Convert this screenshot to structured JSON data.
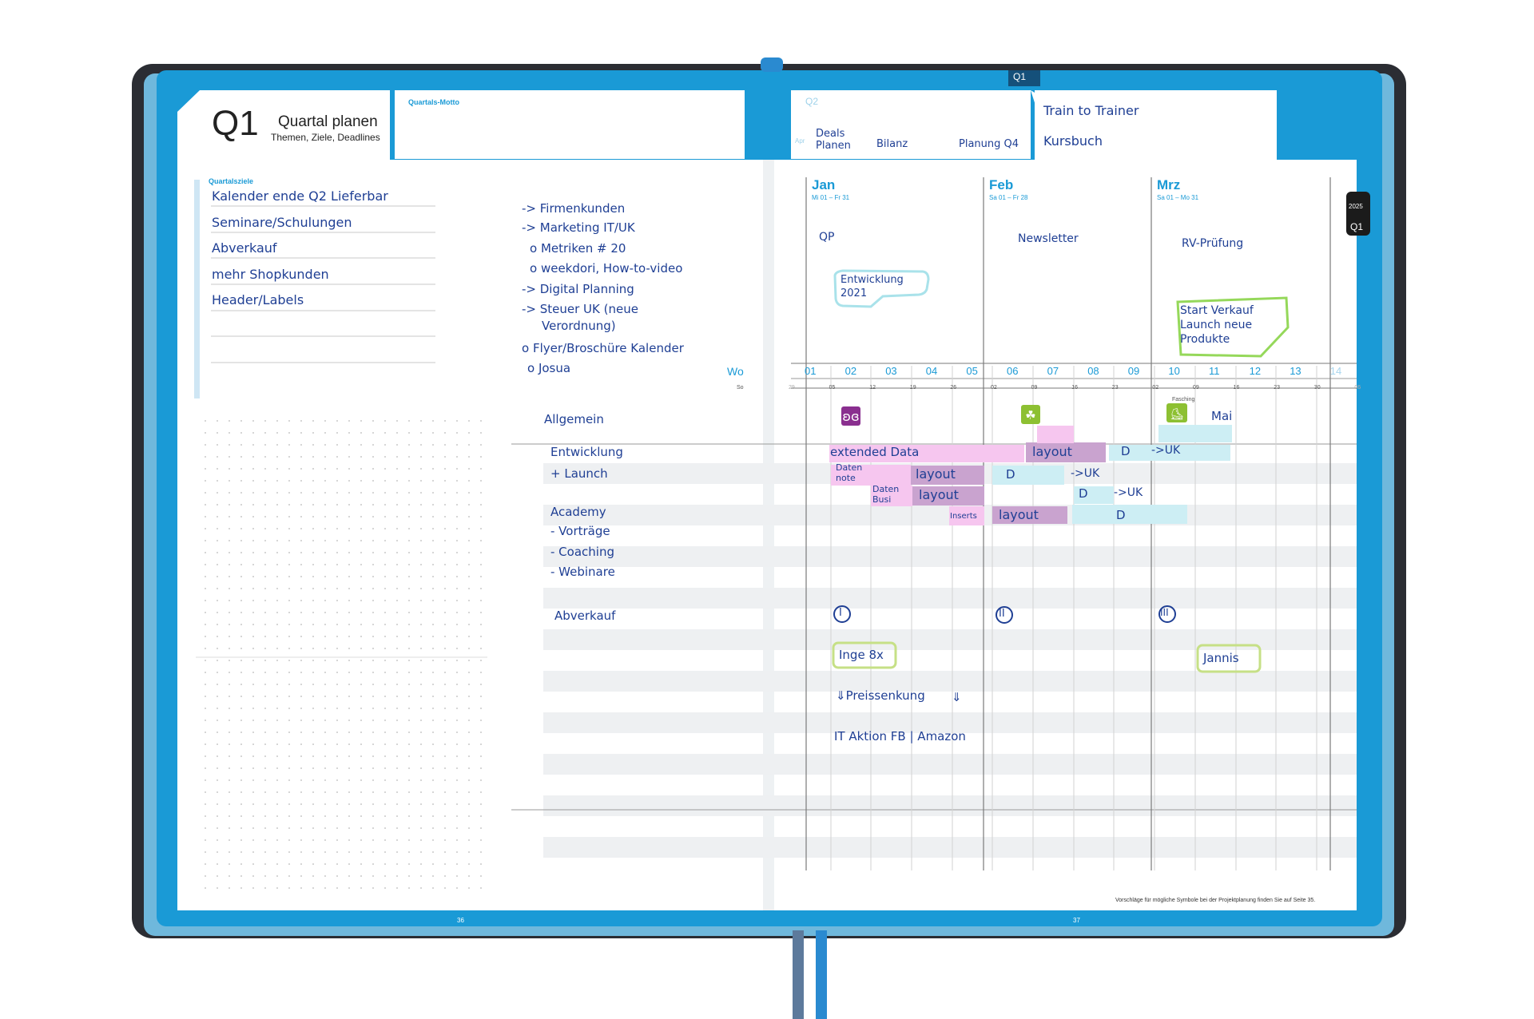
{
  "left_page": {
    "quarter": "Q1",
    "title": "Quartal planen",
    "subtitle": "Themen, Ziele, Deadlines",
    "motto_label": "Quartals-Motto",
    "goals_label": "Quartalsziele",
    "goals": [
      "Kalender ende Q2 Lieferbar",
      "Seminare/Schulungen",
      "Abverkauf",
      "mehr Shopkunden",
      "Header/Labels"
    ],
    "notes": [
      "-> Firmenkunden",
      "-> Marketing IT/UK",
      "o Metriken # 20",
      "o weekdori, How-to-video",
      "-> Digital Planning",
      "-> Steuer UK (neue",
      "Verordnung)",
      "o Flyer/Broschüre Kalender",
      "o Josua"
    ],
    "page_number": "36",
    "week_label": "Wo",
    "week_sub": "So"
  },
  "right_page": {
    "q1_tab": "Q1",
    "q2_label": "Q2",
    "apr_label": "Apr",
    "q2_notes": [
      "Deals",
      "Planen",
      "Bilanz",
      "Planung Q4"
    ],
    "train": "Train to Trainer",
    "kursbuch": "Kursbuch",
    "year": "2025",
    "side_q": "Q1",
    "months": [
      {
        "name": "Jan",
        "range": "Mi 01 – Fr 31",
        "note": "QP"
      },
      {
        "name": "Feb",
        "range": "Sa 01 – Fr 28",
        "note": "Newsletter"
      },
      {
        "name": "Mrz",
        "range": "Sa 01 – Mo 31",
        "note": "RV-Prüfung"
      }
    ],
    "entwicklung_note": [
      "Entwicklung",
      "2021"
    ],
    "start_note": [
      "Start Verkauf",
      "Launch neue",
      "Produkte"
    ],
    "weeks": [
      "01",
      "02",
      "03",
      "04",
      "05",
      "06",
      "07",
      "08",
      "09",
      "10",
      "11",
      "12",
      "13",
      "14"
    ],
    "days": [
      "29",
      "05",
      "12",
      "19",
      "26",
      "02",
      "09",
      "16",
      "23",
      "02",
      "09",
      "16",
      "23",
      "30",
      "06"
    ],
    "fasching": "Fasching",
    "page_number": "37",
    "footer": "Vorschläge für mögliche Symbole bei der Projektplanung finden Sie auf Seite 35."
  },
  "rows": [
    "Allgemein",
    "Entwicklung",
    "+ Launch",
    "Academy",
    "- Vorträge",
    "- Coaching",
    "- Webinare",
    "Abverkauf"
  ],
  "gantt": {
    "mai": "Mai",
    "extended": "extended Data",
    "layout": "layout",
    "D": "D",
    "uk": "->UK",
    "daten1": [
      "Daten",
      "note"
    ],
    "daten2": [
      "Daten",
      "Busi"
    ],
    "inserts": "Inserts",
    "roman": [
      "I",
      "II",
      "III"
    ],
    "inge": "Inge 8x",
    "jannis": "Jannis",
    "preis": "⇓Preissenkung",
    "preis_arrow": "⇓",
    "it_aktion": "IT Aktion FB | Amazon"
  },
  "colors": {
    "accent": "#1a9ad6",
    "ink": "#1f3f94",
    "pink": "#f6c6ef",
    "purple": "#c9a3cf",
    "cyan": "#cdeef4",
    "green_mark": "#a7d96a"
  }
}
